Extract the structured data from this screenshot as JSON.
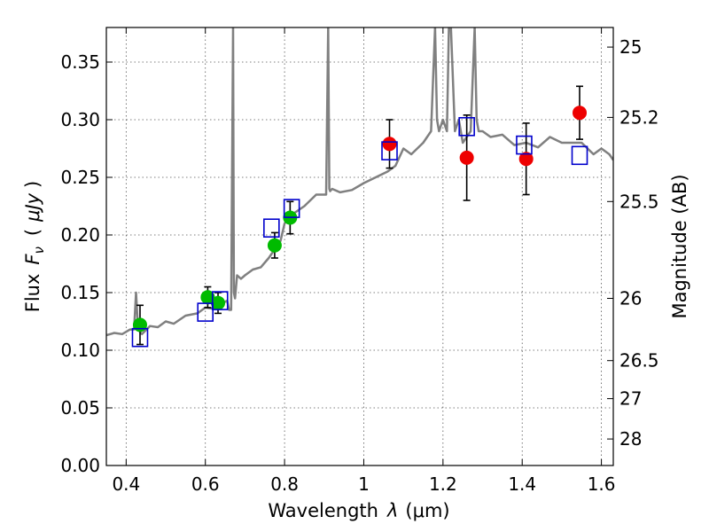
{
  "chart_data": {
    "type": "scatter",
    "xlabel": "Wavelength  λ (μm)",
    "ylabel": "Flux  F_ν  ( μJy )",
    "ylabel_parts": {
      "a": "Flux",
      "b": "F",
      "c": "ν",
      "d": "(",
      "e": "μJy",
      "f": ")"
    },
    "xlabel_parts": {
      "a": "Wavelength",
      "b": "λ",
      "c": "(μm)"
    },
    "ylabel_right": "Magnitude (AB)",
    "xlim": [
      0.35,
      1.63
    ],
    "ylim": [
      0.0,
      0.38
    ],
    "x_ticks": [
      0.4,
      0.6,
      0.8,
      1.0,
      1.2,
      1.4,
      1.6
    ],
    "x_tick_labels": [
      "0.4",
      "0.6",
      "0.8",
      "1",
      "1.2",
      "1.4",
      "1.6"
    ],
    "y_ticks": [
      0.0,
      0.05,
      0.1,
      0.15,
      0.2,
      0.25,
      0.3,
      0.35
    ],
    "y_tick_labels": [
      "0.00",
      "0.05",
      "0.10",
      "0.15",
      "0.20",
      "0.25",
      "0.30",
      "0.35"
    ],
    "right_ticks": [
      {
        "label": "25",
        "flux": 0.363
      },
      {
        "label": "25.2",
        "flux": 0.302
      },
      {
        "label": "25.5",
        "flux": 0.229
      },
      {
        "label": "26",
        "flux": 0.145
      },
      {
        "label": "26.5",
        "flux": 0.091
      },
      {
        "label": "27",
        "flux": 0.058
      },
      {
        "label": "28",
        "flux": 0.023
      }
    ],
    "grid": true,
    "colors": {
      "model": "#808080",
      "green": "#00bb00",
      "red": "#ee0000",
      "box": "#0000cc",
      "errorbar": "#000000"
    },
    "model_spectrum": {
      "x": [
        0.35,
        0.37,
        0.39,
        0.41,
        0.42,
        0.425,
        0.43,
        0.44,
        0.46,
        0.48,
        0.5,
        0.52,
        0.55,
        0.58,
        0.6,
        0.62,
        0.64,
        0.655,
        0.66,
        0.665,
        0.67,
        0.672,
        0.675,
        0.68,
        0.69,
        0.7,
        0.72,
        0.74,
        0.76,
        0.78,
        0.79,
        0.8,
        0.82,
        0.85,
        0.88,
        0.905,
        0.91,
        0.913,
        0.915,
        0.92,
        0.94,
        0.97,
        1.0,
        1.03,
        1.06,
        1.08,
        1.1,
        1.12,
        1.15,
        1.17,
        1.18,
        1.185,
        1.19,
        1.2,
        1.21,
        1.215,
        1.22,
        1.23,
        1.24,
        1.25,
        1.27,
        1.28,
        1.285,
        1.29,
        1.3,
        1.32,
        1.35,
        1.38,
        1.41,
        1.44,
        1.47,
        1.5,
        1.53,
        1.55,
        1.58,
        1.6,
        1.62,
        1.63
      ],
      "y": [
        0.113,
        0.115,
        0.114,
        0.118,
        0.118,
        0.15,
        0.118,
        0.114,
        0.121,
        0.12,
        0.125,
        0.123,
        0.13,
        0.132,
        0.137,
        0.136,
        0.14,
        0.143,
        0.135,
        0.135,
        0.38,
        0.15,
        0.145,
        0.165,
        0.162,
        0.165,
        0.17,
        0.172,
        0.18,
        0.19,
        0.195,
        0.21,
        0.218,
        0.225,
        0.235,
        0.235,
        0.38,
        0.24,
        0.238,
        0.24,
        0.237,
        0.239,
        0.245,
        0.25,
        0.255,
        0.26,
        0.275,
        0.27,
        0.28,
        0.29,
        0.38,
        0.3,
        0.29,
        0.3,
        0.29,
        0.38,
        0.38,
        0.29,
        0.3,
        0.28,
        0.29,
        0.38,
        0.3,
        0.29,
        0.29,
        0.285,
        0.287,
        0.278,
        0.28,
        0.276,
        0.285,
        0.28,
        0.28,
        0.28,
        0.27,
        0.275,
        0.27,
        0.265
      ]
    },
    "series": [
      {
        "marker": "circle",
        "color": "green",
        "points": [
          {
            "x": 0.435,
            "y": 0.122,
            "err": 0.017
          },
          {
            "x": 0.606,
            "y": 0.146,
            "err": 0.009
          },
          {
            "x": 0.632,
            "y": 0.141,
            "err": 0.009
          },
          {
            "x": 0.775,
            "y": 0.191,
            "err": 0.011
          },
          {
            "x": 0.814,
            "y": 0.215,
            "err": 0.014
          }
        ]
      },
      {
        "marker": "circle",
        "color": "red",
        "points": [
          {
            "x": 1.065,
            "y": 0.279,
            "err": 0.021
          },
          {
            "x": 1.26,
            "y": 0.267,
            "err": 0.037
          },
          {
            "x": 1.41,
            "y": 0.266,
            "err": 0.031
          },
          {
            "x": 1.545,
            "y": 0.306,
            "err": 0.023
          }
        ]
      },
      {
        "marker": "square",
        "color": "box",
        "points": [
          {
            "x": 0.435,
            "y": 0.111
          },
          {
            "x": 0.6,
            "y": 0.133
          },
          {
            "x": 0.637,
            "y": 0.143
          },
          {
            "x": 0.767,
            "y": 0.206
          },
          {
            "x": 0.818,
            "y": 0.223
          },
          {
            "x": 1.065,
            "y": 0.273
          },
          {
            "x": 1.26,
            "y": 0.294
          },
          {
            "x": 1.405,
            "y": 0.278
          },
          {
            "x": 1.545,
            "y": 0.269
          }
        ]
      }
    ]
  }
}
